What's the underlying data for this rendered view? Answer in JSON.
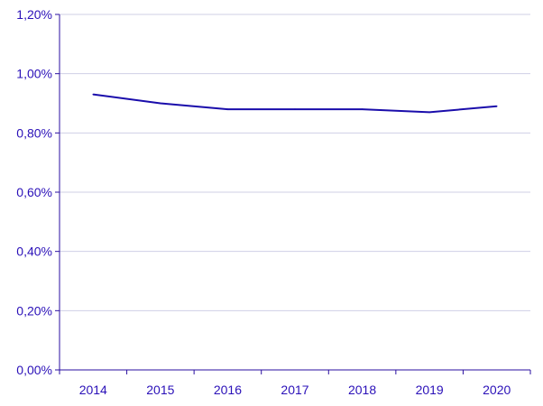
{
  "chart_data": {
    "type": "line",
    "title": "",
    "xlabel": "",
    "ylabel": "",
    "categories": [
      "2014",
      "2015",
      "2016",
      "2017",
      "2018",
      "2019",
      "2020"
    ],
    "series": [
      {
        "values": [
          0.93,
          0.9,
          0.88,
          0.88,
          0.88,
          0.87,
          0.89
        ]
      }
    ],
    "ylim": [
      0,
      1.2
    ],
    "yticks": [
      0,
      0.2,
      0.4,
      0.6,
      0.8,
      1.0,
      1.2
    ],
    "ytick_labels": [
      "0,00%",
      "0,20%",
      "0,40%",
      "0,60%",
      "0,80%",
      "1,00%",
      "1,20%"
    ],
    "grid": true,
    "legend": "none",
    "colors": {
      "line": "#1a0dab",
      "axis": "#2a0fa0",
      "grid": "#cfcfe6",
      "text": "#2a10b8"
    }
  }
}
